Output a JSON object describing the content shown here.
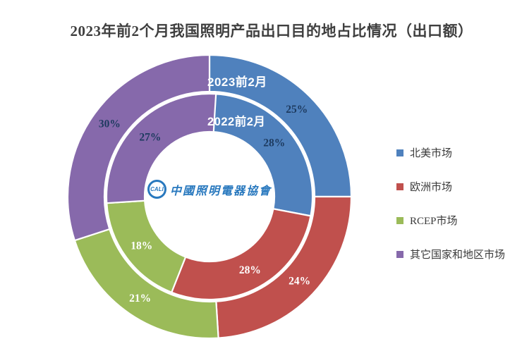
{
  "title": "2023年前2个月我国照明产品出口目的地占比情况（出口额）",
  "chart_data": {
    "type": "pie",
    "variant": "double-ring-donut",
    "title": "2023年前2个月我国照明产品出口目的地占比情况（出口额）",
    "categories": [
      "北美市场",
      "欧洲市场",
      "RCEP市场",
      "其它国家和地区市场"
    ],
    "colors": [
      "#4f81bd",
      "#c0504d",
      "#9bbb59",
      "#8669ab"
    ],
    "value_label_colors": [
      "#1d3a5f",
      "#ffffff",
      "#ffffff",
      "#1d3a5f"
    ],
    "series": [
      {
        "name": "2023前2月",
        "ring": "outer",
        "values": [
          25,
          24,
          21,
          30
        ]
      },
      {
        "name": "2022前2月",
        "ring": "inner",
        "values": [
          28,
          28,
          18,
          27
        ]
      }
    ],
    "unit": "%",
    "start_angle": "12-oclock",
    "direction": "clockwise",
    "legend_position": "right",
    "grid": false
  },
  "legend": {
    "items": [
      {
        "label": "北美市场",
        "color": "#4f81bd"
      },
      {
        "label": "欧洲市场",
        "color": "#c0504d"
      },
      {
        "label": "RCEP市场",
        "color": "#9bbb59"
      },
      {
        "label": "其它国家和地区市场",
        "color": "#8669ab"
      }
    ]
  },
  "center_logo": {
    "acronym": "CALI",
    "text": "中國照明電器協會",
    "color": "#2878be"
  }
}
